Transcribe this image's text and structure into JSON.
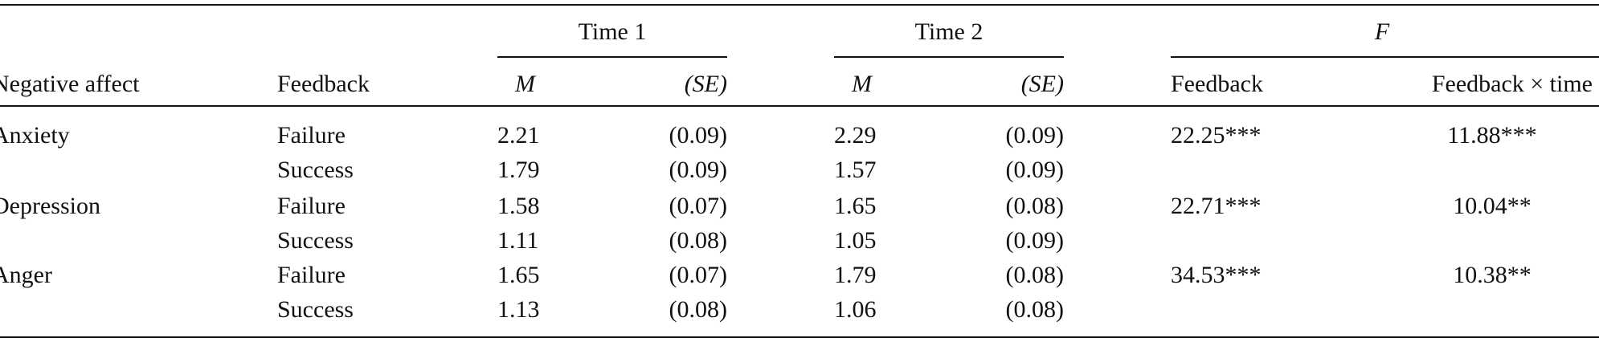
{
  "table": {
    "group_headers": [
      "Time 1",
      "Time 2",
      "F"
    ],
    "columns": [
      "Negative affect",
      "Feedback",
      "M",
      "(SE)",
      "M",
      "(SE)",
      "Feedback",
      "Feedback × time"
    ],
    "groups": [
      {
        "affect": "Anxiety",
        "f_feedback": "22.25***",
        "f_interaction": "11.88***",
        "rows": [
          [
            "Failure",
            "2.21",
            "(0.09)",
            "2.29",
            "(0.09)"
          ],
          [
            "Success",
            "1.79",
            "(0.09)",
            "1.57",
            "(0.09)"
          ]
        ]
      },
      {
        "affect": "Depression",
        "f_feedback": "22.71***",
        "f_interaction": "10.04**",
        "rows": [
          [
            "Failure",
            "1.58",
            "(0.07)",
            "1.65",
            "(0.08)"
          ],
          [
            "Success",
            "1.11",
            "(0.08)",
            "1.05",
            "(0.09)"
          ]
        ]
      },
      {
        "affect": "Anger",
        "f_feedback": "34.53***",
        "f_interaction": "10.38**",
        "rows": [
          [
            "Failure",
            "1.65",
            "(0.07)",
            "1.79",
            "(0.08)"
          ],
          [
            "Success",
            "1.13",
            "(0.08)",
            "1.06",
            "(0.08)"
          ]
        ]
      }
    ]
  }
}
